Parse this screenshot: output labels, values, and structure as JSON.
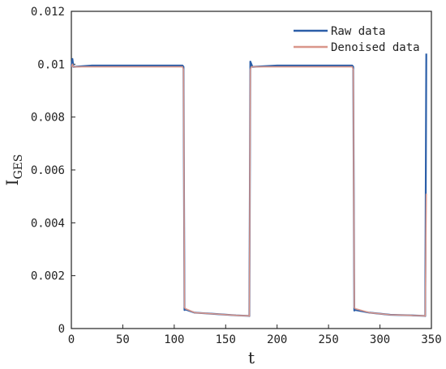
{
  "chart_data": {
    "type": "line",
    "title": "",
    "xlabel": "t",
    "ylabel_main": "I",
    "ylabel_sub": "GES",
    "xlim": [
      0,
      350
    ],
    "ylim": [
      0,
      0.012
    ],
    "x_ticks": [
      0,
      50,
      100,
      150,
      200,
      250,
      300,
      350
    ],
    "y_ticks": [
      0,
      0.002,
      0.004,
      0.006,
      0.008,
      0.01,
      0.012
    ],
    "x_tick_labels": [
      "0",
      "50",
      "100",
      "150",
      "200",
      "250",
      "300",
      "350"
    ],
    "y_tick_labels": [
      "0",
      "0.002",
      "0.004",
      "0.006",
      "0.008",
      "0.01",
      "0.012"
    ],
    "legend_position": "top-right",
    "grid": false,
    "series": [
      {
        "name": "Raw data",
        "color": "#2b5ea8",
        "x": [
          0,
          1,
          2,
          20,
          60,
          100,
          108,
          109,
          110,
          111,
          120,
          140,
          160,
          172,
          173,
          174,
          175,
          176,
          200,
          240,
          273,
          274,
          275,
          276,
          290,
          310,
          330,
          343,
          344,
          345
        ],
        "y": [
          0.0099,
          0.0102,
          0.0099,
          0.00995,
          0.00995,
          0.00995,
          0.00995,
          0.0099,
          0.0007,
          0.00072,
          0.0006,
          0.00055,
          0.0005,
          0.00048,
          0.00047,
          0.0101,
          0.01,
          0.0099,
          0.00995,
          0.00995,
          0.00995,
          0.0099,
          0.00068,
          0.0007,
          0.0006,
          0.00052,
          0.0005,
          0.00048,
          0.00047,
          0.0104
        ]
      },
      {
        "name": "Denoised data",
        "color": "#d9968a",
        "x": [
          0,
          1,
          2,
          20,
          60,
          100,
          108,
          109,
          110,
          111,
          120,
          140,
          160,
          172,
          173,
          174,
          175,
          176,
          200,
          240,
          273,
          274,
          275,
          276,
          290,
          310,
          330,
          343,
          344,
          345
        ],
        "y": [
          0.0099,
          0.01,
          0.0099,
          0.0099,
          0.0099,
          0.0099,
          0.0099,
          0.0098,
          0.0008,
          0.00075,
          0.0006,
          0.00055,
          0.0005,
          0.00048,
          0.00047,
          0.0098,
          0.0099,
          0.0099,
          0.0099,
          0.0099,
          0.0099,
          0.0098,
          0.0008,
          0.00075,
          0.0006,
          0.00052,
          0.0005,
          0.00048,
          0.00047,
          0.0051
        ]
      }
    ]
  }
}
